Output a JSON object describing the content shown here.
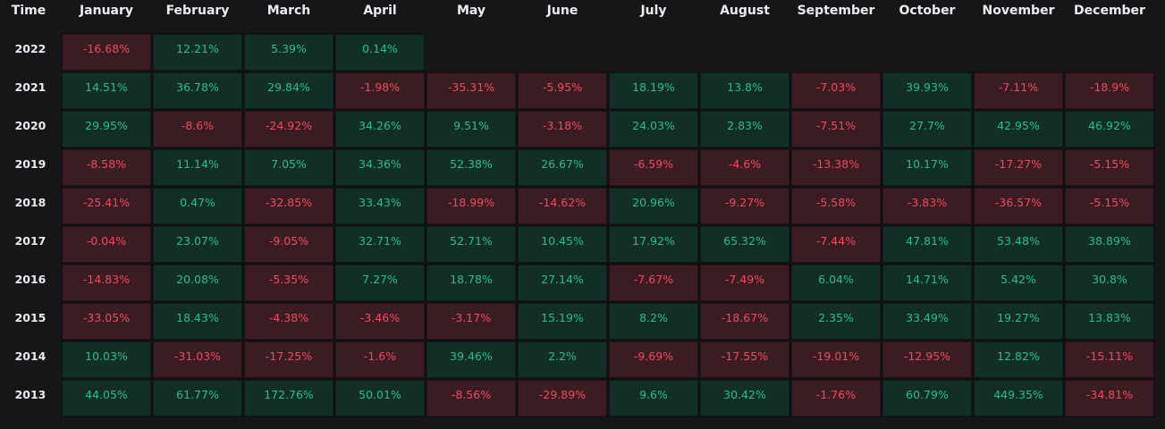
{
  "colors": {
    "background": "#161618",
    "positive_cell": "#112f26",
    "positive_text": "#2ebd85",
    "negative_cell": "#3c1c23",
    "negative_text": "#f6465d",
    "header_text": "#eaecef",
    "cell_border": "#0b0b0d"
  },
  "chart_data": {
    "type": "heatmap",
    "corner_label": "Time",
    "columns": [
      "January",
      "February",
      "March",
      "April",
      "May",
      "June",
      "July",
      "August",
      "September",
      "October",
      "November",
      "December"
    ],
    "rows": [
      {
        "year": "2022",
        "values": [
          "-16.68%",
          "12.21%",
          "5.39%",
          "0.14%",
          null,
          null,
          null,
          null,
          null,
          null,
          null,
          null
        ]
      },
      {
        "year": "2021",
        "values": [
          "14.51%",
          "36.78%",
          "29.84%",
          "-1.98%",
          "-35.31%",
          "-5.95%",
          "18.19%",
          "13.8%",
          "-7.03%",
          "39.93%",
          "-7.11%",
          "-18.9%"
        ]
      },
      {
        "year": "2020",
        "values": [
          "29.95%",
          "-8.6%",
          "-24.92%",
          "34.26%",
          "9.51%",
          "-3.18%",
          "24.03%",
          "2.83%",
          "-7.51%",
          "27.7%",
          "42.95%",
          "46.92%"
        ]
      },
      {
        "year": "2019",
        "values": [
          "-8.58%",
          "11.14%",
          "7.05%",
          "34.36%",
          "52.38%",
          "26.67%",
          "-6.59%",
          "-4.6%",
          "-13.38%",
          "10.17%",
          "-17.27%",
          "-5.15%"
        ]
      },
      {
        "year": "2018",
        "values": [
          "-25.41%",
          "0.47%",
          "-32.85%",
          "33.43%",
          "-18.99%",
          "-14.62%",
          "20.96%",
          "-9.27%",
          "-5.58%",
          "-3.83%",
          "-36.57%",
          "-5.15%"
        ]
      },
      {
        "year": "2017",
        "values": [
          "-0.04%",
          "23.07%",
          "-9.05%",
          "32.71%",
          "52.71%",
          "10.45%",
          "17.92%",
          "65.32%",
          "-7.44%",
          "47.81%",
          "53.48%",
          "38.89%"
        ]
      },
      {
        "year": "2016",
        "values": [
          "-14.83%",
          "20.08%",
          "-5.35%",
          "7.27%",
          "18.78%",
          "27.14%",
          "-7.67%",
          "-7.49%",
          "6.04%",
          "14.71%",
          "5.42%",
          "30.8%"
        ]
      },
      {
        "year": "2015",
        "values": [
          "-33.05%",
          "18.43%",
          "-4.38%",
          "-3.46%",
          "-3.17%",
          "15.19%",
          "8.2%",
          "-18.67%",
          "2.35%",
          "33.49%",
          "19.27%",
          "13.83%"
        ]
      },
      {
        "year": "2014",
        "values": [
          "10.03%",
          "-31.03%",
          "-17.25%",
          "-1.6%",
          "39.46%",
          "2.2%",
          "-9.69%",
          "-17.55%",
          "-19.01%",
          "-12.95%",
          "12.82%",
          "-15.11%"
        ]
      },
      {
        "year": "2013",
        "values": [
          "44.05%",
          "61.77%",
          "172.76%",
          "50.01%",
          "-8.56%",
          "-29.89%",
          "9.6%",
          "30.42%",
          "-1.76%",
          "60.79%",
          "449.35%",
          "-34.81%"
        ]
      }
    ]
  }
}
